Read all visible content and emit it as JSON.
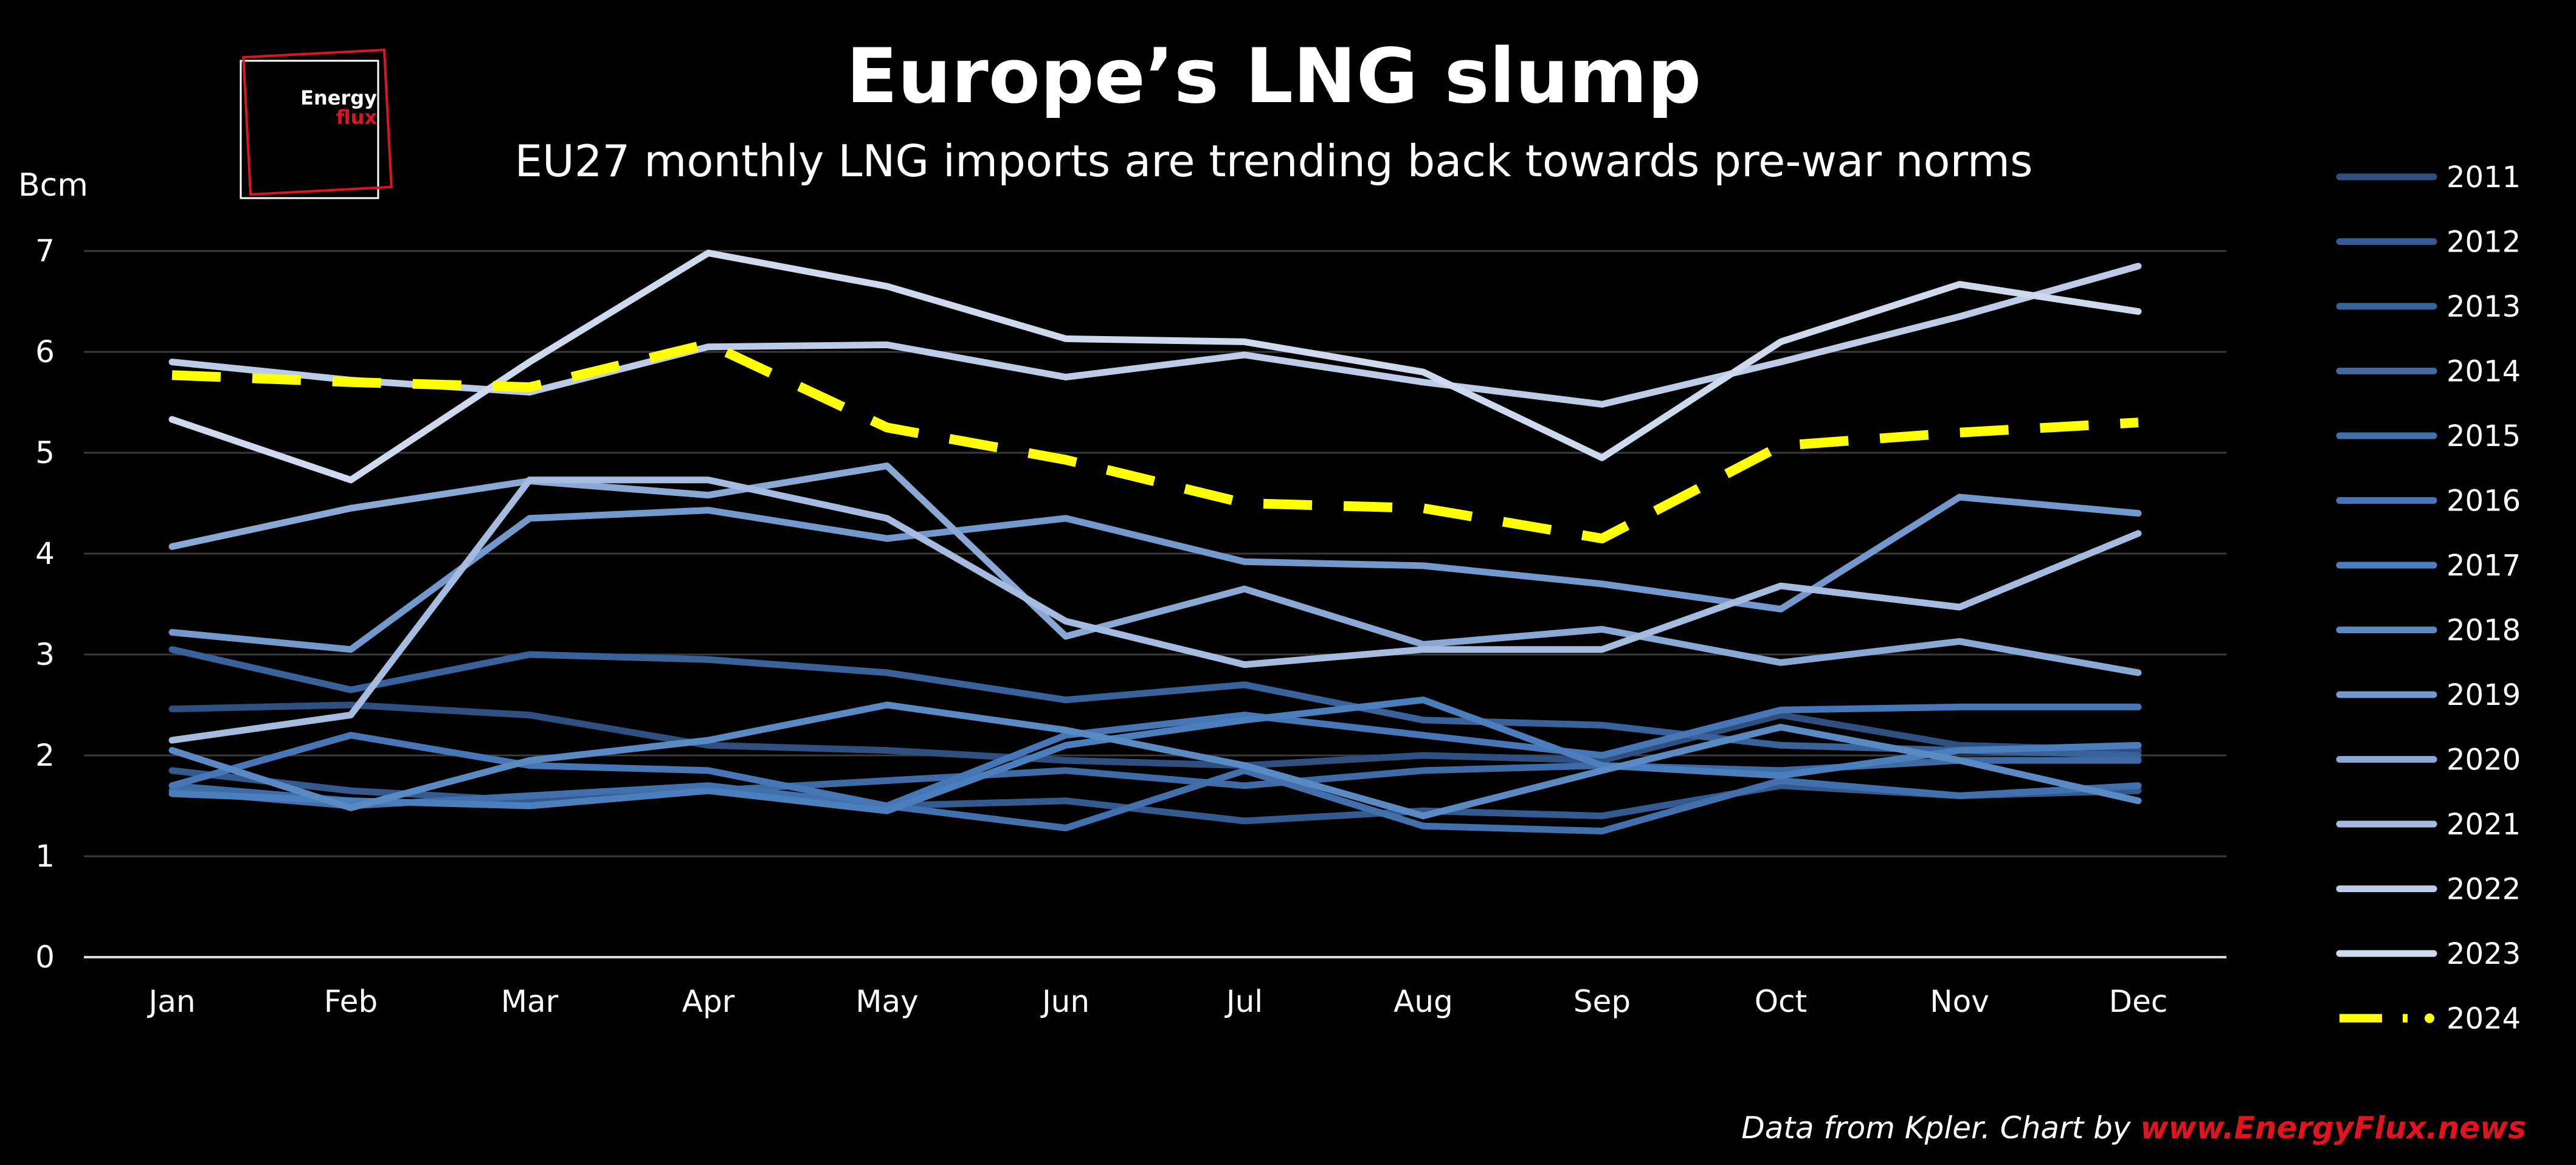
{
  "header": {
    "title": "Europe’s LNG slump",
    "subtitle": "EU27 monthly LNG imports are trending back towards pre-war norms"
  },
  "logo": {
    "line1": "Energy",
    "line2": "flux",
    "accent_color": "#e0141e"
  },
  "source": {
    "text": "Data from Kpler. Chart by ",
    "link": "www.EnergyFlux.news",
    "link_color": "#e0141e"
  },
  "chart_data": {
    "type": "line",
    "ylabel": "Bcm",
    "ylim": [
      0,
      7
    ],
    "yticks": [
      0,
      1,
      2,
      3,
      4,
      5,
      6,
      7
    ],
    "grid": true,
    "legend_position": "right",
    "categories": [
      "Jan",
      "Feb",
      "Mar",
      "Apr",
      "May",
      "Jun",
      "Jul",
      "Aug",
      "Sep",
      "Oct",
      "Nov",
      "Dec"
    ],
    "series": [
      {
        "name": "2011",
        "color": "#2e4f7f",
        "style": "solid",
        "values": [
          2.46,
          2.5,
          2.4,
          2.1,
          2.05,
          1.95,
          1.9,
          2.0,
          1.95,
          2.4,
          2.1,
          2.05
        ]
      },
      {
        "name": "2012",
        "color": "#34598f",
        "style": "solid",
        "values": [
          1.85,
          1.65,
          1.55,
          1.7,
          1.5,
          1.55,
          1.35,
          1.45,
          1.4,
          1.7,
          1.6,
          1.65
        ]
      },
      {
        "name": "2013",
        "color": "#3a629a",
        "style": "solid",
        "values": [
          3.05,
          2.65,
          3.0,
          2.95,
          2.82,
          2.55,
          2.7,
          2.35,
          2.3,
          2.1,
          2.05,
          2.0
        ]
      },
      {
        "name": "2014",
        "color": "#3e6aa6",
        "style": "solid",
        "values": [
          1.7,
          1.55,
          1.5,
          1.65,
          1.75,
          1.85,
          1.7,
          1.85,
          1.9,
          1.85,
          1.95,
          1.95
        ]
      },
      {
        "name": "2015",
        "color": "#4270ad",
        "style": "solid",
        "values": [
          1.65,
          1.5,
          1.6,
          1.7,
          1.5,
          1.28,
          1.85,
          1.3,
          1.25,
          1.75,
          1.6,
          1.7
        ]
      },
      {
        "name": "2016",
        "color": "#4676b5",
        "style": "solid",
        "values": [
          1.7,
          2.2,
          1.9,
          1.85,
          1.5,
          2.2,
          2.4,
          2.2,
          2.0,
          2.45,
          2.48,
          2.48
        ]
      },
      {
        "name": "2017",
        "color": "#4b7ebd",
        "style": "solid",
        "values": [
          1.62,
          1.55,
          1.5,
          1.65,
          1.45,
          2.1,
          2.35,
          2.55,
          1.9,
          1.8,
          2.05,
          2.1
        ]
      },
      {
        "name": "2018",
        "color": "#5a8ac4",
        "style": "solid",
        "values": [
          2.05,
          1.48,
          1.95,
          2.15,
          2.5,
          2.25,
          1.9,
          1.4,
          1.85,
          2.28,
          1.95,
          1.55
        ]
      },
      {
        "name": "2019",
        "color": "#7398cc",
        "style": "solid",
        "values": [
          3.22,
          3.05,
          4.35,
          4.43,
          4.15,
          4.35,
          3.92,
          3.88,
          3.7,
          3.45,
          4.56,
          4.4
        ]
      },
      {
        "name": "2020",
        "color": "#8aa8d4",
        "style": "solid",
        "values": [
          4.07,
          4.45,
          4.72,
          4.58,
          4.87,
          3.18,
          3.65,
          3.1,
          3.25,
          2.92,
          3.13,
          2.82
        ]
      },
      {
        "name": "2021",
        "color": "#a5bbdf",
        "style": "solid",
        "values": [
          2.15,
          2.4,
          4.73,
          4.73,
          4.35,
          3.33,
          2.9,
          3.05,
          3.05,
          3.68,
          3.47,
          4.2
        ]
      },
      {
        "name": "2022",
        "color": "#bccbe7",
        "style": "solid",
        "values": [
          5.9,
          5.72,
          5.6,
          6.05,
          6.07,
          5.75,
          5.97,
          5.7,
          5.48,
          5.9,
          6.35,
          6.85
        ]
      },
      {
        "name": "2023",
        "color": "#cfd9ee",
        "style": "solid",
        "values": [
          5.33,
          4.73,
          5.9,
          6.98,
          6.65,
          6.13,
          6.1,
          5.8,
          4.95,
          6.1,
          6.67,
          6.4
        ]
      },
      {
        "name": "2024",
        "color": "#ffff00",
        "style": "dashed",
        "values": [
          5.77,
          5.7,
          5.65,
          6.08,
          5.25,
          4.93,
          4.5,
          4.45,
          4.15,
          5.07,
          5.2,
          5.3
        ]
      }
    ]
  }
}
